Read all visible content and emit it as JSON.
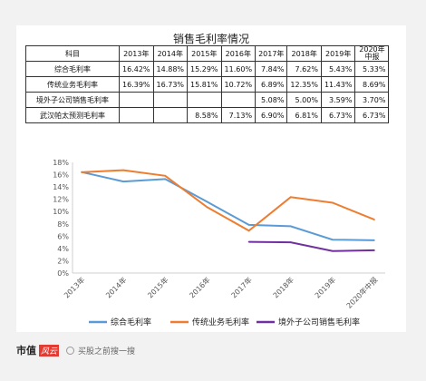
{
  "page_title": "销售毛利率情况",
  "table": {
    "header": [
      "科目",
      "2013年",
      "2014年",
      "2015年",
      "2016年",
      "2017年",
      "2018年",
      "2019年",
      "2020年中报"
    ],
    "rows": [
      {
        "name": "综合毛利率",
        "cells": [
          "16.42%",
          "14.88%",
          "15.29%",
          "11.60%",
          "7.84%",
          "7.62%",
          "5.43%",
          "5.33%"
        ]
      },
      {
        "name": "传统业务毛利率",
        "cells": [
          "16.39%",
          "16.73%",
          "15.81%",
          "10.72%",
          "6.89%",
          "12.35%",
          "11.43%",
          "8.69%"
        ]
      },
      {
        "name": "境外子公司销售毛利率",
        "cells": [
          "",
          "",
          "",
          "",
          "5.08%",
          "5.00%",
          "3.59%",
          "3.70%"
        ]
      },
      {
        "name": "武汉帕太预测毛利率",
        "cells": [
          "",
          "",
          "8.58%",
          "7.13%",
          "6.90%",
          "6.81%",
          "6.73%",
          "6.73%"
        ]
      }
    ]
  },
  "chart_data": {
    "type": "line",
    "categories": [
      "2013年",
      "2014年",
      "2015年",
      "2016年",
      "2017年",
      "2018年",
      "2019年",
      "2020年中报"
    ],
    "y_ticks": [
      "0%",
      "2%",
      "4%",
      "6%",
      "8%",
      "10%",
      "12%",
      "14%",
      "16%",
      "18%"
    ],
    "ylim": [
      0,
      18
    ],
    "grid": false,
    "legend": "bottom",
    "series": [
      {
        "name": "综合毛利率",
        "color": "#5b9bd5",
        "values": [
          16.42,
          14.88,
          15.29,
          11.6,
          7.84,
          7.62,
          5.43,
          5.33
        ]
      },
      {
        "name": "传统业务毛利率",
        "color": "#ed7d31",
        "values": [
          16.39,
          16.73,
          15.81,
          10.72,
          6.89,
          12.35,
          11.43,
          8.69
        ]
      },
      {
        "name": "境外子公司销售毛利率",
        "color": "#7030a0",
        "values": [
          null,
          null,
          null,
          null,
          5.08,
          5.0,
          3.59,
          3.7
        ]
      }
    ]
  },
  "footer": {
    "brand_a": "市值",
    "brand_b": "风云",
    "search_text": "买股之前搜一搜"
  }
}
